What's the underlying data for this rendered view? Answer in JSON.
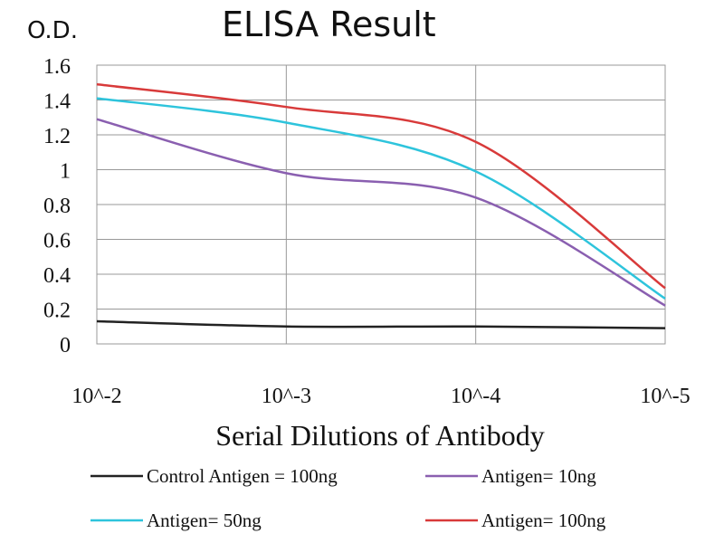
{
  "chart_data": {
    "type": "line",
    "title": "ELISA Result",
    "ylabel": "O.D.",
    "xlabel": "Serial Dilutions of Antibody",
    "categories": [
      "10^-2",
      "10^-3",
      "10^-4",
      "10^-5"
    ],
    "ylim": [
      0,
      1.6
    ],
    "yticks": [
      "0",
      "0.2",
      "0.4",
      "0.6",
      "0.8",
      "1",
      "1.2",
      "1.4",
      "1.6"
    ],
    "grid": true,
    "legend_position": "bottom",
    "series": [
      {
        "name": "Control Antigen = 100ng",
        "color": "#222222",
        "values": [
          0.13,
          0.1,
          0.1,
          0.09
        ]
      },
      {
        "name": "Antigen= 10ng",
        "color": "#8a5fb0",
        "values": [
          1.29,
          0.98,
          0.84,
          0.22
        ]
      },
      {
        "name": "Antigen= 50ng",
        "color": "#2ec4dc",
        "values": [
          1.41,
          1.27,
          0.99,
          0.26
        ]
      },
      {
        "name": "Antigen= 100ng",
        "color": "#d83a3a",
        "values": [
          1.49,
          1.36,
          1.16,
          0.32
        ]
      }
    ]
  }
}
